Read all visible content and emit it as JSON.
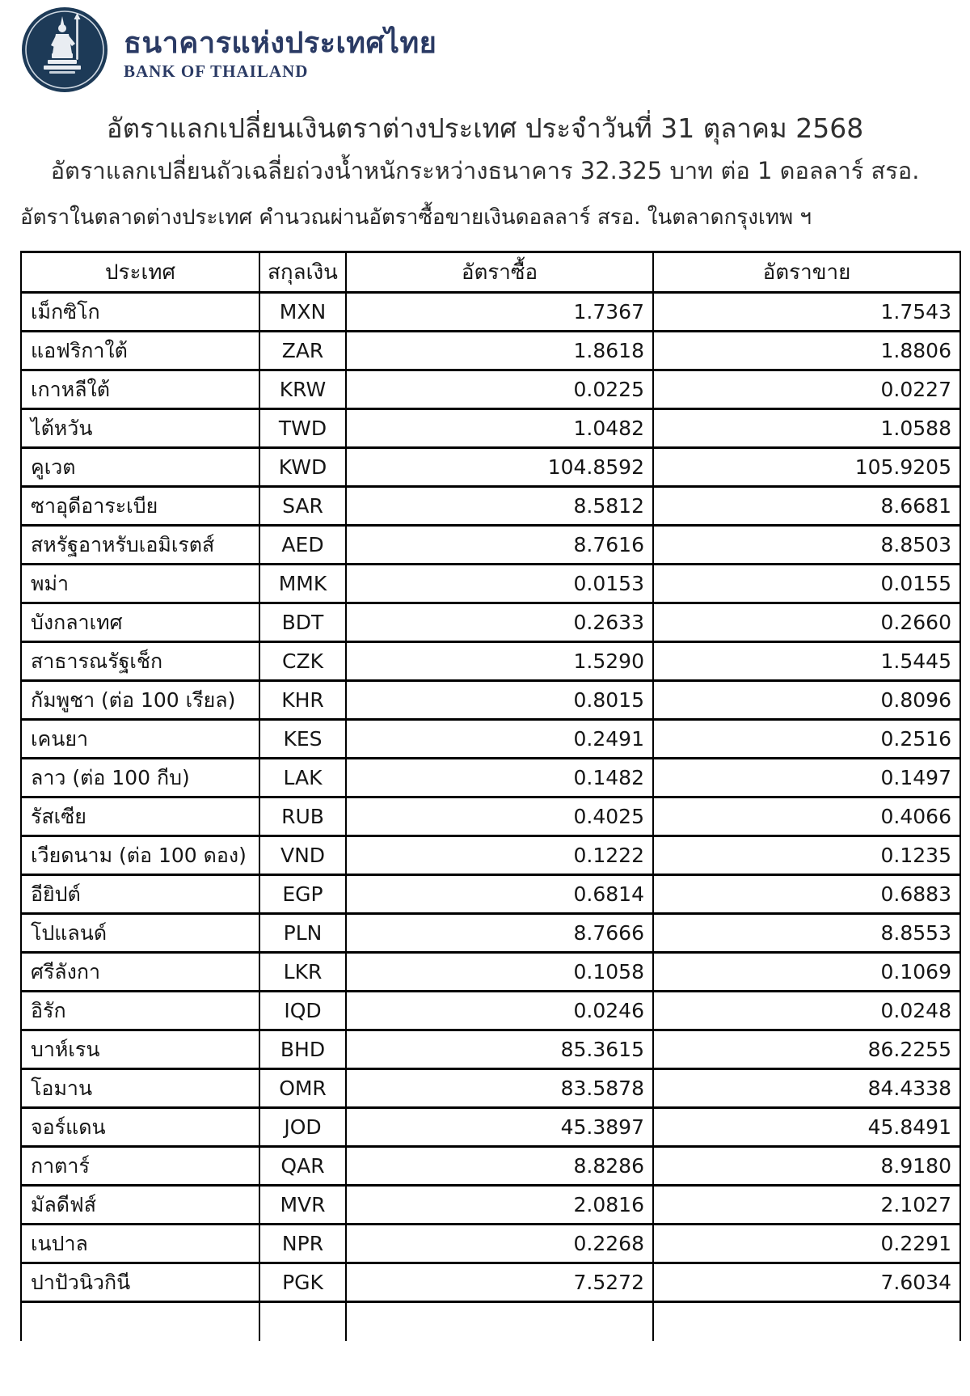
{
  "brand": {
    "name_th": "ธนาคารแห่งประเทศไทย",
    "name_en": "BANK OF THAILAND",
    "navy": "#2a3a64",
    "emblem_navy": "#1d3a57"
  },
  "header": {
    "title": "อัตราแลกเปลี่ยนเงินตราต่างประเทศ ประจำวันที่ 31 ตุลาคม 2568",
    "subtitle": "อัตราแลกเปลี่ยนถัวเฉลี่ยถ่วงน้ำหนักระหว่างธนาคาร 32.325 บาท ต่อ 1 ดอลลาร์ สรอ.",
    "note": "อัตราในตลาดต่างประเทศ คำนวณผ่านอัตราซื้อขายเงินดอลลาร์ สรอ. ในตลาดกรุงเทพ ฯ"
  },
  "table": {
    "columns": [
      "ประเทศ",
      "สกุลเงิน",
      "อัตราซื้อ",
      "อัตราขาย"
    ],
    "rows": [
      {
        "country": "เม็กซิโก",
        "currency": "MXN",
        "buy": "1.7367",
        "sell": "1.7543"
      },
      {
        "country": "แอฟริกาใต้",
        "currency": "ZAR",
        "buy": "1.8618",
        "sell": "1.8806"
      },
      {
        "country": "เกาหลีใต้",
        "currency": "KRW",
        "buy": "0.0225",
        "sell": "0.0227"
      },
      {
        "country": "ไต้หวัน",
        "currency": "TWD",
        "buy": "1.0482",
        "sell": "1.0588"
      },
      {
        "country": "คูเวต",
        "currency": "KWD",
        "buy": "104.8592",
        "sell": "105.9205"
      },
      {
        "country": "ซาอุดีอาระเบีย",
        "currency": "SAR",
        "buy": "8.5812",
        "sell": "8.6681"
      },
      {
        "country": "สหรัฐอาหรับเอมิเรตส์",
        "currency": "AED",
        "buy": "8.7616",
        "sell": "8.8503"
      },
      {
        "country": "พม่า",
        "currency": "MMK",
        "buy": "0.0153",
        "sell": "0.0155"
      },
      {
        "country": "บังกลาเทศ",
        "currency": "BDT",
        "buy": "0.2633",
        "sell": "0.2660"
      },
      {
        "country": "สาธารณรัฐเช็ก",
        "currency": "CZK",
        "buy": "1.5290",
        "sell": "1.5445"
      },
      {
        "country": "กัมพูชา (ต่อ 100 เรียล)",
        "currency": "KHR",
        "buy": "0.8015",
        "sell": "0.8096"
      },
      {
        "country": "เคนยา",
        "currency": "KES",
        "buy": "0.2491",
        "sell": "0.2516"
      },
      {
        "country": "ลาว (ต่อ 100 กีบ)",
        "currency": "LAK",
        "buy": "0.1482",
        "sell": "0.1497"
      },
      {
        "country": "รัสเซีย",
        "currency": "RUB",
        "buy": "0.4025",
        "sell": "0.4066"
      },
      {
        "country": "เวียดนาม (ต่อ 100 ดอง)",
        "currency": "VND",
        "buy": "0.1222",
        "sell": "0.1235"
      },
      {
        "country": "อียิปต์",
        "currency": "EGP",
        "buy": "0.6814",
        "sell": "0.6883"
      },
      {
        "country": "โปแลนด์",
        "currency": "PLN",
        "buy": "8.7666",
        "sell": "8.8553"
      },
      {
        "country": "ศรีลังกา",
        "currency": "LKR",
        "buy": "0.1058",
        "sell": "0.1069"
      },
      {
        "country": "อิรัก",
        "currency": "IQD",
        "buy": "0.0246",
        "sell": "0.0248"
      },
      {
        "country": "บาห์เรน",
        "currency": "BHD",
        "buy": "85.3615",
        "sell": "86.2255"
      },
      {
        "country": "โอมาน",
        "currency": "OMR",
        "buy": "83.5878",
        "sell": "84.4338"
      },
      {
        "country": "จอร์แดน",
        "currency": "JOD",
        "buy": "45.3897",
        "sell": "45.8491"
      },
      {
        "country": "กาตาร์",
        "currency": "QAR",
        "buy": "8.8286",
        "sell": "8.9180"
      },
      {
        "country": "มัลดีฟส์",
        "currency": "MVR",
        "buy": "2.0816",
        "sell": "2.1027"
      },
      {
        "country": "เนปาล",
        "currency": "NPR",
        "buy": "0.2268",
        "sell": "0.2291"
      },
      {
        "country": "ปาปัวนิวกินี",
        "currency": "PGK",
        "buy": "7.5272",
        "sell": "7.6034"
      }
    ]
  }
}
